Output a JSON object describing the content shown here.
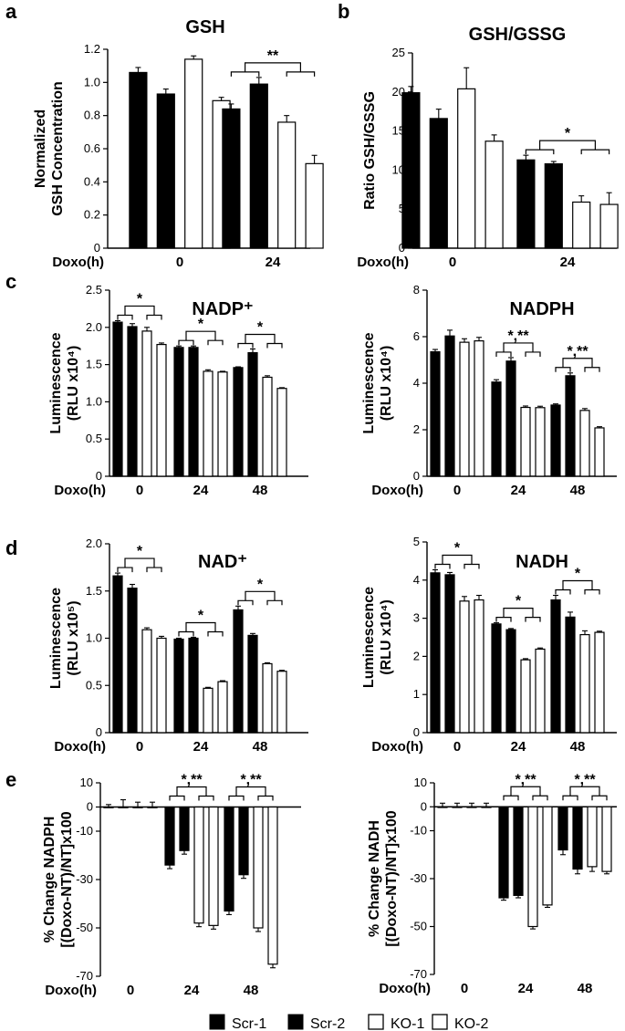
{
  "figure": {
    "panel_letters": [
      "a",
      "b",
      "c",
      "d",
      "e"
    ],
    "legend": [
      {
        "label": "Scr-1",
        "fill": "#000000"
      },
      {
        "label": "Scr-2",
        "fill": "#000000"
      },
      {
        "label": "KO-1",
        "fill": "#ffffff"
      },
      {
        "label": "KO-2",
        "fill": "#ffffff"
      }
    ]
  },
  "chart_data": [
    {
      "id": "a",
      "type": "bar",
      "title": "GSH",
      "ylabel_lines": [
        "Normalized",
        "GSH Concentration"
      ],
      "xlabel": "Doxo(h)",
      "categories": [
        "0",
        "24"
      ],
      "series_names": [
        "Scr-1",
        "Scr-2",
        "KO-1",
        "KO-2"
      ],
      "values": [
        [
          1.06,
          0.93,
          1.14,
          0.89
        ],
        [
          0.84,
          0.99,
          0.76,
          0.51
        ]
      ],
      "errors": [
        [
          0.03,
          0.03,
          0.02,
          0.02
        ],
        [
          0.03,
          0.04,
          0.04,
          0.05
        ]
      ],
      "ylim": [
        0,
        1.2
      ],
      "yticks": [
        "0",
        "0.2",
        "0.4",
        "0.6",
        "0.8",
        "1.0",
        "1.2"
      ],
      "significance": [
        {
          "group": 1,
          "label": "**"
        }
      ]
    },
    {
      "id": "b",
      "type": "bar",
      "title": "GSH/GSSG",
      "ylabel_lines": [
        "Ratio GSH/GSSG"
      ],
      "xlabel": "Doxo(h)",
      "categories": [
        "0",
        "24"
      ],
      "series_names": [
        "Scr-1",
        "Scr-2",
        "KO-1",
        "KO-2"
      ],
      "values": [
        [
          19.9,
          16.6,
          20.4,
          13.7
        ],
        [
          11.3,
          10.8,
          5.9,
          5.6
        ]
      ],
      "errors": [
        [
          0.8,
          1.2,
          2.7,
          0.8
        ],
        [
          0.6,
          0.3,
          0.8,
          1.5
        ]
      ],
      "ylim": [
        0,
        25
      ],
      "yticks": [
        "0",
        "5",
        "10",
        "15",
        "20",
        "25"
      ],
      "significance": [
        {
          "group": 1,
          "label": "*"
        }
      ]
    },
    {
      "id": "c1",
      "type": "bar",
      "title": "NADP⁺",
      "ylabel_lines": [
        "Luminescence",
        "(RLU x10⁴)"
      ],
      "xlabel": "Doxo(h)",
      "categories": [
        "0",
        "24",
        "48"
      ],
      "series_names": [
        "Scr-1",
        "Scr-2",
        "KO-1",
        "KO-2"
      ],
      "values": [
        [
          2.07,
          2.01,
          1.95,
          1.77
        ],
        [
          1.73,
          1.73,
          1.41,
          1.4
        ],
        [
          1.46,
          1.66,
          1.33,
          1.18
        ]
      ],
      "errors": [
        [
          0.02,
          0.04,
          0.05,
          0.02
        ],
        [
          0.02,
          0.02,
          0.02,
          0.01
        ],
        [
          0.01,
          0.05,
          0.02,
          0.01
        ]
      ],
      "ylim": [
        0,
        2.5
      ],
      "yticks": [
        "0",
        "0.5",
        "1.0",
        "1.5",
        "2.0",
        "2.5"
      ],
      "significance": [
        {
          "group": 0,
          "label": "*"
        },
        {
          "group": 1,
          "label": "*"
        },
        {
          "group": 2,
          "label": "*"
        }
      ]
    },
    {
      "id": "c2",
      "type": "bar",
      "title": "NADPH",
      "ylabel_lines": [
        "Luminescence",
        "(RLU x10⁴)"
      ],
      "xlabel": "Doxo(h)",
      "categories": [
        "0",
        "24",
        "48"
      ],
      "series_names": [
        "Scr-1",
        "Scr-2",
        "KO-1",
        "KO-2"
      ],
      "values": [
        [
          5.35,
          6.03,
          5.76,
          5.82
        ],
        [
          4.05,
          4.95,
          2.96,
          2.95
        ],
        [
          3.06,
          4.32,
          2.83,
          2.08
        ]
      ],
      "errors": [
        [
          0.1,
          0.25,
          0.15,
          0.15
        ],
        [
          0.1,
          0.15,
          0.06,
          0.06
        ],
        [
          0.05,
          0.12,
          0.08,
          0.05
        ]
      ],
      "ylim": [
        0,
        8
      ],
      "yticks": [
        "0",
        "2",
        "4",
        "6",
        "8"
      ],
      "significance": [
        {
          "group": 1,
          "label": "*,**"
        },
        {
          "group": 2,
          "label": "*,**"
        }
      ]
    },
    {
      "id": "d1",
      "type": "bar",
      "title": "NAD⁺",
      "ylabel_lines": [
        "Luminescence",
        "(RLU x10⁵)"
      ],
      "xlabel": "Doxo(h)",
      "categories": [
        "0",
        "24",
        "48"
      ],
      "series_names": [
        "Scr-1",
        "Scr-2",
        "KO-1",
        "KO-2"
      ],
      "values": [
        [
          1.66,
          1.53,
          1.09,
          1.0
        ],
        [
          0.99,
          1.0,
          0.47,
          0.54
        ],
        [
          1.3,
          1.03,
          0.73,
          0.65
        ]
      ],
      "errors": [
        [
          0.03,
          0.04,
          0.02,
          0.02
        ],
        [
          0.01,
          0.01,
          0.01,
          0.01
        ],
        [
          0.04,
          0.02,
          0.01,
          0.01
        ]
      ],
      "ylim": [
        0,
        2.0
      ],
      "yticks": [
        "0",
        "0.5",
        "1.0",
        "1.5",
        "2.0"
      ],
      "significance": [
        {
          "group": 0,
          "label": "*"
        },
        {
          "group": 1,
          "label": "*"
        },
        {
          "group": 2,
          "label": "*"
        }
      ]
    },
    {
      "id": "d2",
      "type": "bar",
      "title": "NADH",
      "ylabel_lines": [
        "Luminescence",
        "(RLU x10⁴)"
      ],
      "xlabel": "Doxo(h)",
      "categories": [
        "0",
        "24",
        "48"
      ],
      "series_names": [
        "Scr-1",
        "Scr-2",
        "KO-1",
        "KO-2"
      ],
      "values": [
        [
          4.19,
          4.14,
          3.45,
          3.48
        ],
        [
          2.85,
          2.7,
          1.91,
          2.19
        ],
        [
          3.48,
          3.03,
          2.57,
          2.63
        ]
      ],
      "errors": [
        [
          0.08,
          0.06,
          0.12,
          0.12
        ],
        [
          0.03,
          0.03,
          0.03,
          0.03
        ],
        [
          0.12,
          0.13,
          0.1,
          0.03
        ]
      ],
      "ylim": [
        0,
        5
      ],
      "yticks": [
        "0",
        "1",
        "2",
        "3",
        "4",
        "5"
      ],
      "significance": [
        {
          "group": 0,
          "label": "*"
        },
        {
          "group": 1,
          "label": "*"
        },
        {
          "group": 2,
          "label": "*"
        }
      ]
    },
    {
      "id": "e1",
      "type": "bar",
      "ylabel_lines": [
        "% Change NADPH",
        "[(Doxo-NT)/NT]x100"
      ],
      "xlabel": "Doxo(h)",
      "categories": [
        "0",
        "24",
        "48"
      ],
      "series_names": [
        "Scr-1",
        "Scr-2",
        "KO-1",
        "KO-2"
      ],
      "values": [
        [
          0,
          0,
          0,
          0
        ],
        [
          -24,
          -18,
          -48,
          -49
        ],
        [
          -43,
          -28,
          -50,
          -65
        ]
      ],
      "errors": [
        [
          1,
          3,
          2,
          2
        ],
        [
          1.5,
          1.5,
          1.5,
          1.5
        ],
        [
          1.5,
          1.5,
          1.5,
          1.5
        ]
      ],
      "ylim": [
        -70,
        10
      ],
      "yticks": [
        "10",
        "0",
        "-10",
        "-30",
        "-50",
        "-70"
      ],
      "ytick_values": [
        10,
        0,
        -10,
        -30,
        -50,
        -70
      ],
      "significance": [
        {
          "group": 1,
          "label": "*,**"
        },
        {
          "group": 2,
          "label": "*,**"
        }
      ]
    },
    {
      "id": "e2",
      "type": "bar",
      "ylabel_lines": [
        "% Change NADH",
        "[(Doxo-NT)/NT]x100"
      ],
      "xlabel": "Doxo(h)",
      "categories": [
        "0",
        "24",
        "48"
      ],
      "series_names": [
        "Scr-1",
        "Scr-2",
        "KO-1",
        "KO-2"
      ],
      "values": [
        [
          0,
          0,
          0,
          0
        ],
        [
          -38,
          -37,
          -50,
          -41
        ],
        [
          -18,
          -26,
          -25,
          -27
        ]
      ],
      "errors": [
        [
          1.5,
          1.5,
          1.5,
          1.5
        ],
        [
          1,
          1,
          1,
          1
        ],
        [
          2,
          2,
          2,
          1
        ]
      ],
      "ylim": [
        -70,
        10
      ],
      "yticks": [
        "10",
        "0",
        "-10",
        "-30",
        "-50",
        "-70"
      ],
      "ytick_values": [
        10,
        0,
        -10,
        -30,
        -50,
        -70
      ],
      "significance": [
        {
          "group": 1,
          "label": "*,**"
        },
        {
          "group": 2,
          "label": "*,**"
        }
      ]
    }
  ]
}
